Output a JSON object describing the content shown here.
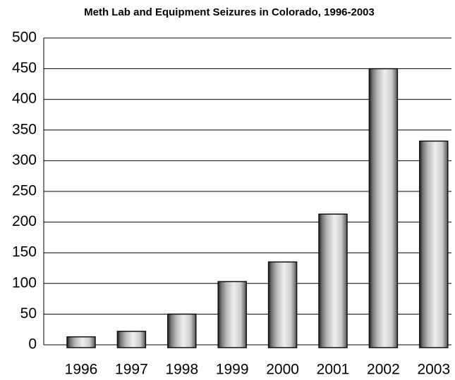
{
  "chart_data": {
    "type": "bar",
    "title": "Meth Lab and Equipment Seizures in Colorado, 1996-2003",
    "categories": [
      "1996",
      "1997",
      "1998",
      "1999",
      "2000",
      "2001",
      "2002",
      "2003"
    ],
    "values": [
      13,
      22,
      50,
      103,
      135,
      213,
      450,
      332
    ],
    "color": "#d8d8d8",
    "ylim": [
      0,
      500
    ],
    "yticks": [
      0,
      50,
      100,
      150,
      200,
      250,
      300,
      350,
      400,
      450,
      500
    ],
    "grid": true
  }
}
